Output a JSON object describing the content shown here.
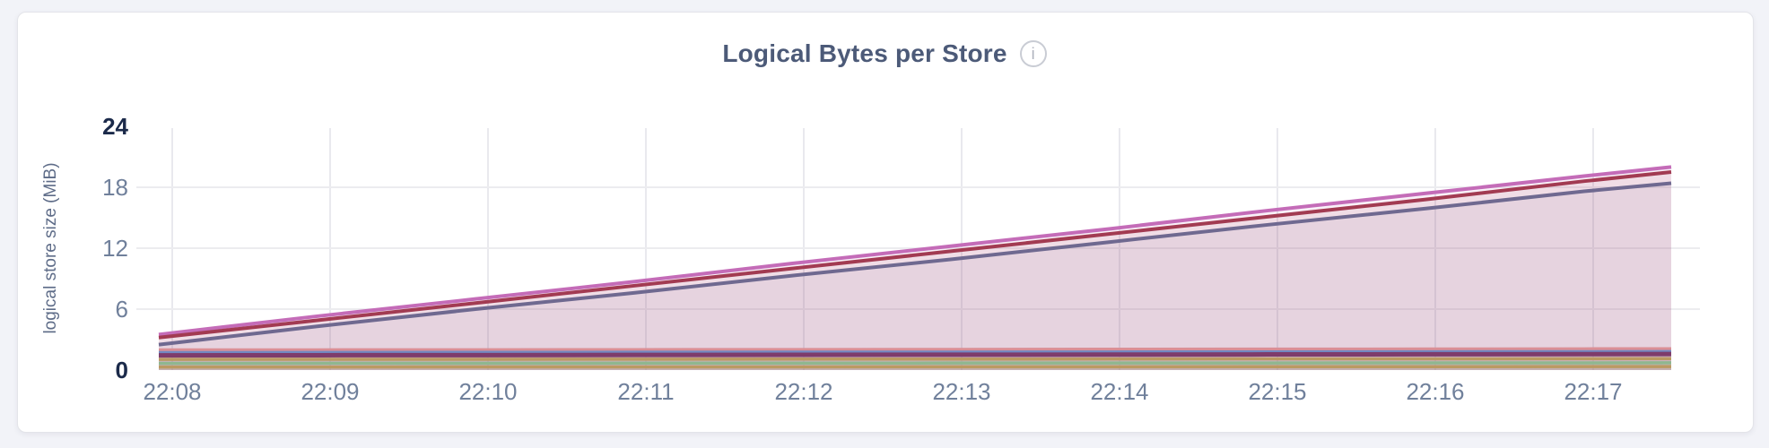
{
  "header": {
    "title": "Logical Bytes per Store",
    "info_glyph": "i"
  },
  "palette": {
    "grid_vertical": "#E9E9EE",
    "grid_horizontal": "#ECECEF",
    "axis_text": "#70809B",
    "axis_text_major": "#1B2A4A",
    "unit_text": "#5E6C88",
    "title_text": "#4C5A78",
    "card_background": "#FFFFFF",
    "page_background": "#F2F3F8"
  },
  "chart_data": {
    "type": "area",
    "title": "Logical Bytes per Store",
    "xlabel": "",
    "ylabel": "logical store size (MiB)",
    "ylim": [
      0,
      24
    ],
    "grid": true,
    "legend": "none",
    "y_tick_labels": [
      "0",
      "6",
      "12",
      "18",
      "24"
    ],
    "x_tick_labels": [
      "22:08",
      "22:09",
      "22:10",
      "22:11",
      "22:12",
      "22:13",
      "22:14",
      "22:15",
      "22:16",
      "22:17"
    ],
    "x_minutes": [
      0,
      1,
      2,
      3,
      4,
      5,
      6,
      7,
      8,
      9,
      9.55
    ],
    "series": [
      {
        "id": "store-line-orchid",
        "color": "#C46CB8",
        "fill_opacity": 0.1,
        "width": 4,
        "values": [
          3.5,
          5.3,
          7.0,
          8.7,
          10.5,
          12.2,
          13.9,
          15.7,
          17.4,
          19.1,
          20.0
        ]
      },
      {
        "id": "store-line-crimson",
        "color": "#A23B52",
        "fill_opacity": 0.1,
        "width": 4,
        "values": [
          3.2,
          4.9,
          6.6,
          8.3,
          10.0,
          11.7,
          13.4,
          15.1,
          16.8,
          18.6,
          19.5
        ]
      },
      {
        "id": "store-line-slate",
        "color": "#6F6990",
        "fill_opacity": 0.08,
        "width": 4,
        "values": [
          2.5,
          4.3,
          6.0,
          7.6,
          9.3,
          10.9,
          12.6,
          14.3,
          15.9,
          17.6,
          18.4
        ]
      },
      {
        "id": "store-line-salmon",
        "color": "#DA8F96",
        "fill_opacity": 0.1,
        "width": 3.5,
        "values": [
          1.98,
          1.99,
          2.0,
          2.01,
          2.02,
          2.03,
          2.05,
          2.06,
          2.07,
          2.09,
          2.1
        ]
      },
      {
        "id": "store-line-blue",
        "color": "#7289C2",
        "fill_opacity": 0.1,
        "width": 3.5,
        "values": [
          1.72,
          1.73,
          1.74,
          1.75,
          1.76,
          1.77,
          1.78,
          1.79,
          1.8,
          1.81,
          1.82
        ]
      },
      {
        "id": "store-line-magenta",
        "color": "#7E3C6B",
        "fill_opacity": 0.1,
        "width": 5,
        "values": [
          1.45,
          1.46,
          1.47,
          1.49,
          1.5,
          1.51,
          1.52,
          1.54,
          1.55,
          1.57,
          1.58
        ]
      },
      {
        "id": "store-line-tan",
        "color": "#BB9A62",
        "fill_opacity": 0.1,
        "width": 3.5,
        "values": [
          1.05,
          1.06,
          1.06,
          1.07,
          1.08,
          1.08,
          1.09,
          1.1,
          1.1,
          1.11,
          1.12
        ]
      },
      {
        "id": "store-line-green",
        "color": "#8FB78F",
        "fill_opacity": 0.1,
        "width": 3.5,
        "values": [
          0.66,
          0.67,
          0.67,
          0.68,
          0.68,
          0.69,
          0.7,
          0.7,
          0.71,
          0.71,
          0.72
        ]
      },
      {
        "id": "store-line-tan-2",
        "color": "#BB9A62",
        "fill_opacity": 0.1,
        "width": 3.5,
        "values": [
          0.3,
          0.3,
          0.31,
          0.31,
          0.31,
          0.32,
          0.32,
          0.33,
          0.33,
          0.34,
          0.34
        ]
      }
    ]
  }
}
